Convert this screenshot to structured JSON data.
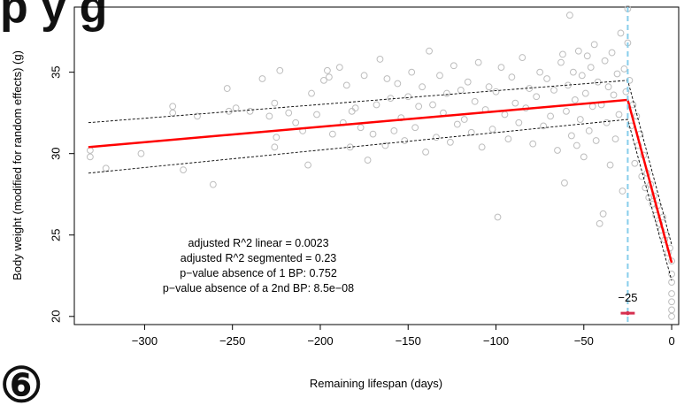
{
  "page": {
    "top_fragment": "p    y    g",
    "bottom_fragment": "⑥  "
  },
  "chart_data": {
    "type": "scatter",
    "title": "",
    "xlabel": "Remaining lifespan (days)",
    "ylabel": "Body weight (modified for random effects) (g)",
    "xlim": [
      -340,
      4
    ],
    "ylim": [
      19.5,
      39
    ],
    "xticks": [
      -300,
      -250,
      -200,
      -150,
      -100,
      -50,
      0
    ],
    "yticks": [
      20,
      25,
      30,
      35
    ],
    "grid": false,
    "colors": {
      "points": "#bdbdbd",
      "fit": "#ff0000",
      "ci": "#000000",
      "breakpoint": "#87ceeb",
      "bp_ci": "#d62f4f",
      "text": "#000000"
    },
    "breakpoint": {
      "x": -25,
      "label": "−25",
      "ci_low": -29,
      "ci_high": -21,
      "ci_y": 20.2
    },
    "segmented_fit": {
      "x": [
        -332,
        -25,
        0
      ],
      "y": [
        30.4,
        33.3,
        23.3
      ]
    },
    "ci_upper": {
      "x": [
        -332,
        -25,
        0
      ],
      "y": [
        31.9,
        34.5,
        24.4
      ]
    },
    "ci_lower": {
      "x": [
        -332,
        -25,
        0
      ],
      "y": [
        28.8,
        32.1,
        22.2
      ]
    },
    "annotations": [
      "adjusted R^2 linear = 0.0023",
      "adjusted R^2 segmented = 0.23",
      "p−value absence of 1 BP: 0.752",
      "p−value absence of a 2nd BP: 8.5e−08"
    ],
    "points": [
      [
        -331,
        30.2
      ],
      [
        -331,
        29.8
      ],
      [
        -322,
        29.1
      ],
      [
        -302,
        30.0
      ],
      [
        -284,
        32.9
      ],
      [
        -284,
        32.5
      ],
      [
        -278,
        29.0
      ],
      [
        -270,
        32.3
      ],
      [
        -261,
        28.1
      ],
      [
        -253,
        34.0
      ],
      [
        -252,
        32.6
      ],
      [
        -248,
        32.8
      ],
      [
        -240,
        32.6
      ],
      [
        -233,
        34.6
      ],
      [
        -229,
        32.3
      ],
      [
        -226,
        30.4
      ],
      [
        -226,
        33.1
      ],
      [
        -225,
        31.0
      ],
      [
        -223,
        35.1
      ],
      [
        -218,
        32.5
      ],
      [
        -214,
        31.9
      ],
      [
        -210,
        31.4
      ],
      [
        -207,
        29.3
      ],
      [
        -205,
        33.7
      ],
      [
        -202,
        32.4
      ],
      [
        -198,
        34.5
      ],
      [
        -196,
        35.1
      ],
      [
        -195,
        34.7
      ],
      [
        -193,
        31.2
      ],
      [
        -189,
        35.3
      ],
      [
        -187,
        31.9
      ],
      [
        -185,
        34.2
      ],
      [
        -183,
        30.4
      ],
      [
        -182,
        32.6
      ],
      [
        -180,
        32.8
      ],
      [
        -177,
        31.6
      ],
      [
        -175,
        34.8
      ],
      [
        -173,
        29.6
      ],
      [
        -170,
        31.2
      ],
      [
        -168,
        33.0
      ],
      [
        -166,
        35.8
      ],
      [
        -163,
        30.5
      ],
      [
        -162,
        34.6
      ],
      [
        -160,
        33.4
      ],
      [
        -158,
        31.4
      ],
      [
        -156,
        34.3
      ],
      [
        -154,
        32.2
      ],
      [
        -152,
        30.8
      ],
      [
        -150,
        33.5
      ],
      [
        -148,
        35.0
      ],
      [
        -146,
        31.6
      ],
      [
        -144,
        32.9
      ],
      [
        -142,
        34.1
      ],
      [
        -140,
        30.1
      ],
      [
        -138,
        36.3
      ],
      [
        -136,
        33.0
      ],
      [
        -134,
        31.0
      ],
      [
        -132,
        34.8
      ],
      [
        -130,
        32.5
      ],
      [
        -128,
        33.7
      ],
      [
        -126,
        30.7
      ],
      [
        -124,
        35.4
      ],
      [
        -122,
        31.8
      ],
      [
        -120,
        33.9
      ],
      [
        -118,
        32.1
      ],
      [
        -116,
        34.4
      ],
      [
        -114,
        31.3
      ],
      [
        -112,
        33.2
      ],
      [
        -110,
        35.6
      ],
      [
        -108,
        30.4
      ],
      [
        -106,
        32.7
      ],
      [
        -104,
        34.1
      ],
      [
        -102,
        31.5
      ],
      [
        -100,
        33.8
      ],
      [
        -99,
        26.1
      ],
      [
        -97,
        35.3
      ],
      [
        -95,
        32.4
      ],
      [
        -93,
        30.9
      ],
      [
        -91,
        34.7
      ],
      [
        -89,
        33.1
      ],
      [
        -87,
        31.9
      ],
      [
        -85,
        35.9
      ],
      [
        -83,
        32.8
      ],
      [
        -81,
        34.0
      ],
      [
        -79,
        30.6
      ],
      [
        -77,
        33.5
      ],
      [
        -75,
        35.0
      ],
      [
        -73,
        31.7
      ],
      [
        -71,
        34.6
      ],
      [
        -69,
        32.3
      ],
      [
        -67,
        33.9
      ],
      [
        -65,
        30.2
      ],
      [
        -63,
        35.6
      ],
      [
        -62,
        36.1
      ],
      [
        -61,
        28.2
      ],
      [
        -60,
        32.6
      ],
      [
        -59,
        34.2
      ],
      [
        -58,
        38.5
      ],
      [
        -57,
        31.1
      ],
      [
        -56,
        35.0
      ],
      [
        -55,
        33.3
      ],
      [
        -54,
        30.5
      ],
      [
        -53,
        36.3
      ],
      [
        -52,
        32.1
      ],
      [
        -51,
        34.8
      ],
      [
        -50,
        29.8
      ],
      [
        -49,
        33.7
      ],
      [
        -48,
        36.0
      ],
      [
        -47,
        31.4
      ],
      [
        -46,
        35.3
      ],
      [
        -45,
        32.9
      ],
      [
        -44,
        36.7
      ],
      [
        -43,
        30.8
      ],
      [
        -42,
        34.4
      ],
      [
        -41,
        25.7
      ],
      [
        -40,
        33.0
      ],
      [
        -39,
        26.3
      ],
      [
        -38,
        35.7
      ],
      [
        -37,
        31.9
      ],
      [
        -36,
        34.1
      ],
      [
        -35,
        29.3
      ],
      [
        -34,
        36.2
      ],
      [
        -33,
        33.6
      ],
      [
        -32,
        30.9
      ],
      [
        -31,
        34.9
      ],
      [
        -30,
        32.4
      ],
      [
        -29,
        37.4
      ],
      [
        -28,
        27.7
      ],
      [
        -27,
        35.2
      ],
      [
        -26,
        33.8
      ],
      [
        -25,
        36.8
      ],
      [
        -25,
        38.9
      ],
      [
        -24,
        34.5
      ],
      [
        -23,
        31.7
      ],
      [
        -22,
        33.0
      ],
      [
        -21,
        29.4
      ],
      [
        -20,
        32.3
      ],
      [
        -19,
        30.5
      ],
      [
        -18,
        31.2
      ],
      [
        -17,
        28.6
      ],
      [
        -16,
        29.9
      ],
      [
        -15,
        27.9
      ],
      [
        -14,
        28.8
      ],
      [
        -13,
        27.3
      ],
      [
        -12,
        28.1
      ],
      [
        -11,
        26.9
      ],
      [
        -10,
        27.4
      ],
      [
        -9,
        26.2
      ],
      [
        -8,
        26.8
      ],
      [
        -7,
        25.7
      ],
      [
        -6,
        25.3
      ],
      [
        -5,
        26.1
      ],
      [
        -4,
        24.7
      ],
      [
        -3,
        25.0
      ],
      [
        -2,
        23.9
      ],
      [
        -1,
        24.2
      ],
      [
        0,
        22.6
      ],
      [
        0,
        22.1
      ],
      [
        0,
        21.4
      ],
      [
        0,
        20.9
      ],
      [
        0,
        20.4
      ],
      [
        0,
        20.0
      ],
      [
        0,
        23.4
      ]
    ]
  }
}
